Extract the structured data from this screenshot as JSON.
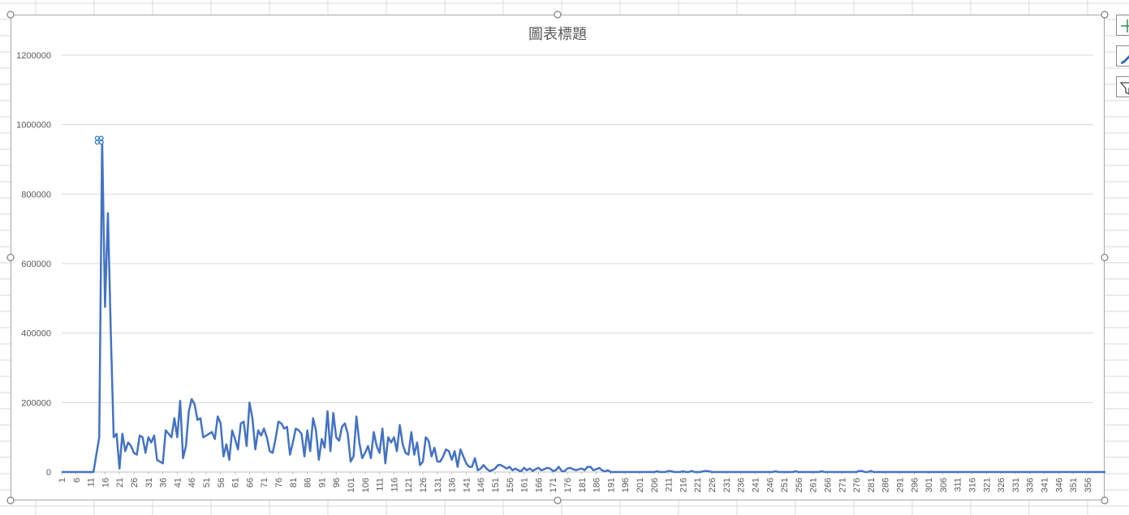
{
  "chart_data": {
    "type": "line",
    "title": "圖表標題",
    "xlabel": "",
    "ylabel": "",
    "ylim": [
      0,
      1200000
    ],
    "yticks": [
      0,
      200000,
      400000,
      600000,
      800000,
      1000000,
      1200000
    ],
    "ytick_labels": [
      "0",
      "200000",
      "400000",
      "600000",
      "800000",
      "1000000",
      "1200000"
    ],
    "xlim": [
      1,
      358
    ],
    "xtick_step": 5,
    "xtick_labels": [
      "1",
      "6",
      "11",
      "16",
      "21",
      "26",
      "31",
      "36",
      "41",
      "46",
      "51",
      "56",
      "61",
      "66",
      "71",
      "76",
      "81",
      "86",
      "91",
      "96",
      "101",
      "106",
      "111",
      "116",
      "121",
      "126",
      "131",
      "136",
      "141",
      "146",
      "151",
      "156",
      "161",
      "166",
      "171",
      "176",
      "181",
      "186",
      "191",
      "196",
      "201",
      "206",
      "211",
      "216",
      "221",
      "226",
      "231",
      "236",
      "241",
      "246",
      "251",
      "256",
      "261",
      "266",
      "271",
      "276",
      "281",
      "286",
      "291",
      "296",
      "301",
      "306",
      "311",
      "316",
      "321",
      "326",
      "331",
      "336",
      "341",
      "346",
      "351",
      "356"
    ],
    "grid": true,
    "legend": "none",
    "line_color": "#4472c4",
    "selected_point": {
      "x": 14,
      "y": 955000
    },
    "series": [
      {
        "values": [
          0,
          0,
          0,
          0,
          0,
          0,
          0,
          0,
          0,
          0,
          0,
          0,
          50000,
          100000,
          955000,
          475000,
          745000,
          400000,
          100000,
          110000,
          10000,
          110000,
          60000,
          85000,
          75000,
          55000,
          50000,
          105000,
          100000,
          55000,
          100000,
          85000,
          105000,
          35000,
          30000,
          25000,
          120000,
          110000,
          100000,
          155000,
          100000,
          205000,
          40000,
          75000,
          175000,
          210000,
          195000,
          150000,
          155000,
          100000,
          105000,
          110000,
          115000,
          95000,
          160000,
          140000,
          45000,
          80000,
          35000,
          120000,
          95000,
          65000,
          140000,
          145000,
          75000,
          200000,
          155000,
          65000,
          120000,
          105000,
          125000,
          100000,
          60000,
          55000,
          95000,
          145000,
          140000,
          125000,
          130000,
          50000,
          85000,
          125000,
          120000,
          110000,
          45000,
          120000,
          60000,
          155000,
          120000,
          35000,
          95000,
          70000,
          175000,
          60000,
          170000,
          100000,
          90000,
          130000,
          140000,
          110000,
          30000,
          45000,
          160000,
          85000,
          40000,
          55000,
          75000,
          40000,
          115000,
          75000,
          55000,
          125000,
          25000,
          100000,
          85000,
          100000,
          60000,
          135000,
          80000,
          55000,
          50000,
          115000,
          50000,
          85000,
          20000,
          30000,
          100000,
          90000,
          45000,
          70000,
          30000,
          30000,
          45000,
          65000,
          60000,
          35000,
          60000,
          15000,
          65000,
          45000,
          25000,
          15000,
          15000,
          40000,
          5000,
          10000,
          20000,
          10000,
          3000,
          5000,
          10000,
          20000,
          20000,
          15000,
          10000,
          15000,
          5000,
          10000,
          5000,
          2000,
          12000,
          5000,
          10000,
          3000,
          8000,
          12000,
          5000,
          8000,
          12000,
          10000,
          3000,
          5000,
          15000,
          3000,
          2000,
          10000,
          12000,
          8000,
          5000,
          8000,
          10000,
          5000,
          15000,
          15000,
          5000,
          8000,
          12000,
          5000,
          2000,
          5000,
          0,
          0,
          0,
          0,
          0,
          0,
          0,
          0,
          0,
          0,
          0,
          0,
          0,
          0,
          0,
          0,
          2000,
          0,
          0,
          0,
          3000,
          2000,
          0,
          0,
          0,
          2000,
          0,
          0,
          3000,
          0,
          0,
          0,
          2000,
          3000,
          2000,
          0,
          0,
          0,
          0,
          0,
          0,
          0,
          0,
          0,
          0,
          0,
          0,
          0,
          0,
          0,
          0,
          0,
          0,
          0,
          0,
          0,
          0,
          2000,
          0,
          0,
          0,
          0,
          0,
          0,
          2000,
          0,
          0,
          0,
          0,
          0,
          0,
          0,
          0,
          2000,
          0,
          0,
          0,
          0,
          0,
          0,
          0,
          0,
          0,
          0,
          0,
          0,
          3000,
          3000,
          0,
          0,
          3000,
          0,
          0,
          0,
          0,
          0,
          0,
          0,
          0,
          0,
          0,
          0,
          0,
          0,
          0,
          0,
          0,
          0,
          0,
          0,
          0,
          0,
          0,
          0,
          0,
          0,
          0,
          0,
          0,
          0,
          0,
          0,
          0,
          0,
          0,
          0,
          0,
          0,
          0,
          0,
          0,
          0,
          0,
          0,
          0,
          0,
          0,
          0,
          0,
          0,
          0,
          0,
          0,
          0,
          0,
          0,
          0,
          0,
          0,
          0,
          0,
          0,
          0,
          0,
          0,
          0,
          0,
          0,
          0,
          0,
          0,
          0,
          0,
          0,
          0,
          0,
          0,
          0,
          0,
          0,
          0,
          0,
          0,
          0,
          0,
          0,
          0,
          0,
          0,
          0,
          0,
          0,
          0,
          0,
          0
        ]
      }
    ]
  }
}
